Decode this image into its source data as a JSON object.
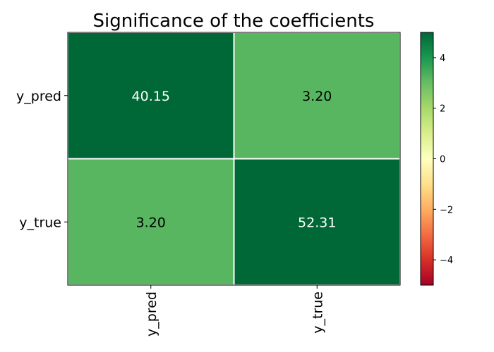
{
  "chart_data": {
    "type": "heatmap",
    "title": "Significance of the coefficients",
    "xlabel": "",
    "ylabel": "",
    "x_categories": [
      "y_pred",
      "y_true"
    ],
    "y_categories": [
      "y_pred",
      "y_true"
    ],
    "cells": [
      {
        "row": 0,
        "col": 0,
        "label": "40.15",
        "color_value": 5
      },
      {
        "row": 0,
        "col": 1,
        "label": "3.20",
        "color_value": 3.2
      },
      {
        "row": 1,
        "col": 0,
        "label": "3.20",
        "color_value": 3.2
      },
      {
        "row": 1,
        "col": 1,
        "label": "52.31",
        "color_value": 5
      }
    ],
    "colormap": "RdYlGn",
    "colorbar": {
      "vmin": -5,
      "vmax": 5,
      "ticks": [
        -4,
        -2,
        0,
        2,
        4
      ],
      "tick_labels": [
        "−4",
        "−2",
        "0",
        "2",
        "4"
      ]
    },
    "grid": false
  }
}
